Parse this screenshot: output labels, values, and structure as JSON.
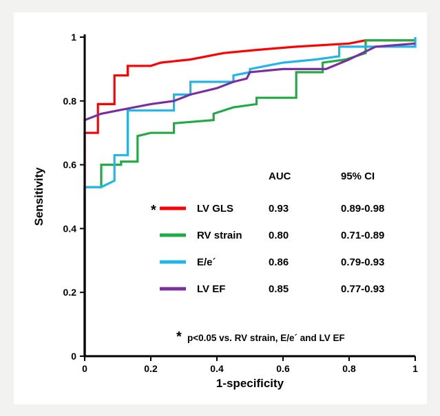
{
  "chart_data": {
    "type": "line",
    "xlabel": "1-specificity",
    "ylabel": "Sensitivity",
    "xlim": [
      0,
      1
    ],
    "ylim": [
      0,
      1
    ],
    "xticks": [
      "0",
      "0.2",
      "0.4",
      "0.6",
      "0.8",
      "1"
    ],
    "yticks": [
      "0",
      "0.2",
      "0.4",
      "0.6",
      "0.8",
      "1"
    ],
    "grid": false,
    "legend": {
      "placement": "center-right",
      "header_auc": "AUC",
      "header_ci": "95% CI",
      "entries": [
        {
          "name": "LV GLS",
          "marker": "*",
          "auc": "0.93",
          "ci": "0.89-0.98",
          "color": "#ff0000"
        },
        {
          "name": "RV strain",
          "marker": "",
          "auc": "0.80",
          "ci": "0.71-0.89",
          "color": "#22aa44"
        },
        {
          "name": "E/e´",
          "marker": "",
          "auc": "0.86",
          "ci": "0.79-0.93",
          "color": "#22b5e8"
        },
        {
          "name": "LV EF",
          "marker": "",
          "auc": "0.85",
          "ci": "0.77-0.93",
          "color": "#7a2f9e"
        }
      ]
    },
    "annotation": {
      "star": "*",
      "text": "p<0.05 vs. RV strain, E/e´ and LV EF"
    },
    "series": [
      {
        "name": "LV GLS",
        "color": "#ff0000",
        "points": [
          [
            0,
            0
          ],
          [
            0,
            0.7
          ],
          [
            0.04,
            0.7
          ],
          [
            0.04,
            0.79
          ],
          [
            0.09,
            0.79
          ],
          [
            0.09,
            0.88
          ],
          [
            0.13,
            0.88
          ],
          [
            0.13,
            0.91
          ],
          [
            0.2,
            0.91
          ],
          [
            0.23,
            0.92
          ],
          [
            0.32,
            0.93
          ],
          [
            0.42,
            0.95
          ],
          [
            0.52,
            0.96
          ],
          [
            0.64,
            0.97
          ],
          [
            0.8,
            0.98
          ],
          [
            0.85,
            0.99
          ],
          [
            1,
            0.99
          ]
        ]
      },
      {
        "name": "RV strain",
        "color": "#22aa44",
        "points": [
          [
            0,
            0
          ],
          [
            0,
            0.53
          ],
          [
            0.05,
            0.53
          ],
          [
            0.05,
            0.6
          ],
          [
            0.11,
            0.6
          ],
          [
            0.11,
            0.61
          ],
          [
            0.16,
            0.61
          ],
          [
            0.16,
            0.69
          ],
          [
            0.2,
            0.7
          ],
          [
            0.27,
            0.7
          ],
          [
            0.27,
            0.73
          ],
          [
            0.39,
            0.74
          ],
          [
            0.39,
            0.76
          ],
          [
            0.45,
            0.78
          ],
          [
            0.52,
            0.79
          ],
          [
            0.52,
            0.81
          ],
          [
            0.61,
            0.81
          ],
          [
            0.64,
            0.81
          ],
          [
            0.64,
            0.89
          ],
          [
            0.72,
            0.89
          ],
          [
            0.72,
            0.92
          ],
          [
            0.79,
            0.93
          ],
          [
            0.85,
            0.95
          ],
          [
            0.85,
            0.99
          ],
          [
            1,
            0.99
          ]
        ]
      },
      {
        "name": "E/e´",
        "color": "#22b5e8",
        "points": [
          [
            0,
            0
          ],
          [
            0,
            0.53
          ],
          [
            0.05,
            0.53
          ],
          [
            0.09,
            0.55
          ],
          [
            0.09,
            0.63
          ],
          [
            0.13,
            0.63
          ],
          [
            0.13,
            0.77
          ],
          [
            0.27,
            0.77
          ],
          [
            0.27,
            0.82
          ],
          [
            0.32,
            0.82
          ],
          [
            0.32,
            0.86
          ],
          [
            0.45,
            0.86
          ],
          [
            0.45,
            0.88
          ],
          [
            0.5,
            0.89
          ],
          [
            0.5,
            0.9
          ],
          [
            0.6,
            0.92
          ],
          [
            0.7,
            0.93
          ],
          [
            0.77,
            0.94
          ],
          [
            0.77,
            0.97
          ],
          [
            0.85,
            0.97
          ],
          [
            1,
            0.97
          ],
          [
            1,
            1
          ]
        ]
      },
      {
        "name": "LV EF",
        "color": "#7a2f9e",
        "points": [
          [
            0,
            0
          ],
          [
            0,
            0.74
          ],
          [
            0.05,
            0.76
          ],
          [
            0.1,
            0.77
          ],
          [
            0.2,
            0.79
          ],
          [
            0.27,
            0.8
          ],
          [
            0.32,
            0.82
          ],
          [
            0.4,
            0.84
          ],
          [
            0.45,
            0.86
          ],
          [
            0.49,
            0.87
          ],
          [
            0.5,
            0.89
          ],
          [
            0.6,
            0.9
          ],
          [
            0.73,
            0.9
          ],
          [
            0.8,
            0.93
          ],
          [
            0.88,
            0.97
          ],
          [
            1,
            0.98
          ]
        ]
      }
    ]
  }
}
